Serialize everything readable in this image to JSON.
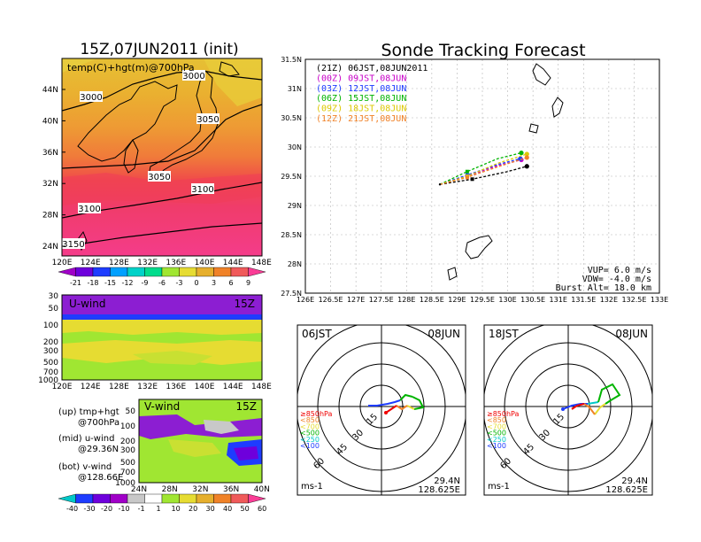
{
  "left_title": "15Z,07JUN2011 (init)",
  "right_title": "Sonde Tracking Forecast",
  "map_panel": {
    "label": "temp(C)+hgt(m)@700hPa",
    "lat_labels": [
      "44N",
      "40N",
      "36N",
      "32N",
      "28N",
      "24N"
    ],
    "lon_labels": [
      "120E",
      "124E",
      "128E",
      "132E",
      "136E",
      "140E",
      "144E",
      "148E"
    ],
    "contour_labels": [
      "3000",
      "3000",
      "3050",
      "3050",
      "3100",
      "3100",
      "3150"
    ],
    "colorbar_labels": [
      "-21",
      "-18",
      "-15",
      "-12",
      "-9",
      "-6",
      "-3",
      "0",
      "3",
      "6",
      "9"
    ],
    "colorbar_colors": [
      "#a000c8",
      "#6e00dc",
      "#1e3cff",
      "#00a0ff",
      "#00d2c8",
      "#00dc8c",
      "#a0e632",
      "#e6dc32",
      "#e6af2d",
      "#f08228",
      "#f05a5a",
      "#fa3c96"
    ]
  },
  "u_wind_panel": {
    "label": "U-wind",
    "time": "15Z",
    "p_labels": [
      "30",
      "50",
      "100",
      "200",
      "300",
      "500",
      "700",
      "1000"
    ],
    "lon_labels": [
      "120E",
      "124E",
      "128E",
      "132E",
      "136E",
      "140E",
      "144E",
      "148E"
    ]
  },
  "v_wind_panel": {
    "label": "V-wind",
    "time": "15Z",
    "p_labels": [
      "50",
      "100",
      "200",
      "300",
      "500",
      "700",
      "1000"
    ],
    "lat_labels": [
      "24N",
      "28N",
      "32N",
      "36N",
      "40N"
    ]
  },
  "notes": [
    {
      "text": "(up) tmp+hgt"
    },
    {
      "text": "@700hPa"
    },
    {
      "text": "(mid) u-wind"
    },
    {
      "text": "@29.36N"
    },
    {
      "text": "(bot) v-wind"
    },
    {
      "text": "@128.66E"
    }
  ],
  "wind_colorbar_labels": [
    "-40",
    "-30",
    "-20",
    "-10",
    "-1",
    "1",
    "10",
    "20",
    "30",
    "40",
    "50",
    "60"
  ],
  "wind_colorbar_colors": [
    "#00c8c8",
    "#1e3cff",
    "#6e00dc",
    "#a000c8",
    "#c8c8c8",
    "#ffffff",
    "#a0e632",
    "#e6dc32",
    "#e6af2d",
    "#f08228",
    "#f05a5a",
    "#fa3c96"
  ],
  "track_panel": {
    "x_labels": [
      "126E",
      "126.5E",
      "127E",
      "127.5E",
      "128E",
      "128.5E",
      "129E",
      "129.5E",
      "130E",
      "130.5E",
      "131E",
      "131.5E",
      "132E",
      "132.5E",
      "133E"
    ],
    "y_labels": [
      "31.5N",
      "31N",
      "30.5N",
      "30N",
      "29.5N",
      "29N",
      "28.5N",
      "28N",
      "27.5N"
    ],
    "legend": [
      {
        "text": "(21Z) 06JST,08JUN2011",
        "color": "#000000"
      },
      {
        "text": "(00Z) 09JST,08JUN",
        "color": "#c800c8"
      },
      {
        "text": "(03Z) 12JST,08JUN",
        "color": "#1e3cff"
      },
      {
        "text": "(06Z) 15JST,08JUN",
        "color": "#00b400"
      },
      {
        "text": "(09Z) 18JST,08JUN",
        "color": "#dcc800"
      },
      {
        "text": "(12Z) 21JST,08JUN",
        "color": "#f08228"
      }
    ],
    "vup": "VUP= 6.0 m/s",
    "vdw": "VDW= -4.0 m/s",
    "burst": "Burst Alt= 18.0 km"
  },
  "hodo_left": {
    "time": "06JST",
    "date": "08JUN",
    "lat": "29.4N",
    "lon": "128.625E",
    "unit": "ms-1",
    "rings": [
      "15",
      "30",
      "45",
      "60"
    ]
  },
  "hodo_right": {
    "time": "18JST",
    "date": "08JUN",
    "lat": "29.4N",
    "lon": "128.625E",
    "unit": "ms-1",
    "rings": [
      "15",
      "30",
      "45",
      "60"
    ]
  },
  "hodo_legend": [
    {
      "text": "≥850hPa",
      "color": "#f00000"
    },
    {
      "text": "<850",
      "color": "#f08228"
    },
    {
      "text": "<700",
      "color": "#e6dc32"
    },
    {
      "text": "<500",
      "color": "#00b400"
    },
    {
      "text": "<250",
      "color": "#00c8c8"
    },
    {
      "text": "<100",
      "color": "#1e3cff"
    }
  ],
  "chart_data": {
    "type": "line",
    "title": "Sonde Tracking Forecast",
    "xlim": [
      126,
      133
    ],
    "ylim": [
      27.5,
      31.5
    ],
    "launch": {
      "lon": 128.66,
      "lat": 29.36
    },
    "series": [
      {
        "name": "(21Z) 06JST,08JUN2011",
        "color": "#000000",
        "x": [
          128.66,
          129.3,
          130.0,
          130.38
        ],
        "y": [
          29.36,
          29.45,
          29.58,
          29.67
        ]
      },
      {
        "name": "(00Z) 09JST,08JUN",
        "color": "#c800c8",
        "x": [
          128.66,
          129.2,
          129.8,
          130.27
        ],
        "y": [
          29.36,
          29.5,
          29.68,
          29.78
        ]
      },
      {
        "name": "(03Z) 12JST,08JUN",
        "color": "#1e3cff",
        "x": [
          128.66,
          129.2,
          129.8,
          130.25
        ],
        "y": [
          29.36,
          29.52,
          29.7,
          29.8
        ]
      },
      {
        "name": "(06Z) 15JST,08JUN",
        "color": "#00b400",
        "x": [
          128.66,
          129.2,
          129.8,
          130.27
        ],
        "y": [
          29.36,
          29.58,
          29.8,
          29.9
        ]
      },
      {
        "name": "(09Z) 18JST,08JUN",
        "color": "#dcc800",
        "x": [
          128.66,
          129.2,
          129.8,
          130.38
        ],
        "y": [
          29.36,
          29.5,
          29.72,
          29.88
        ]
      },
      {
        "name": "(12Z) 21JST,08JUN",
        "color": "#f08228",
        "x": [
          128.66,
          129.2,
          129.8,
          130.38
        ],
        "y": [
          29.36,
          29.48,
          29.66,
          29.82
        ]
      }
    ]
  }
}
